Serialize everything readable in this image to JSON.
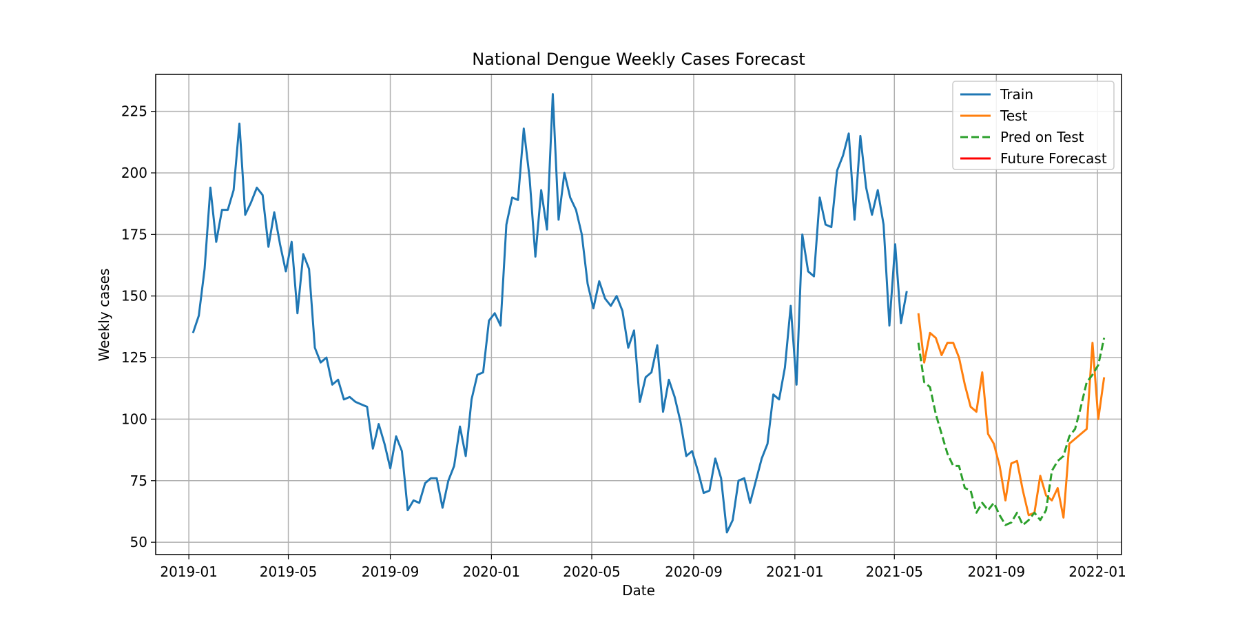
{
  "chart_data": {
    "type": "line",
    "title": "National Dengue Weekly Cases Forecast",
    "xlabel": "Date",
    "ylabel": "Weekly cases",
    "x_range": [
      "2018-11-22",
      "2022-01-30"
    ],
    "ylim": [
      45,
      240
    ],
    "grid": true,
    "legend_position": "top-right",
    "x_ticks": [
      {
        "date": "2019-01-01",
        "label": "2019-01"
      },
      {
        "date": "2019-05-01",
        "label": "2019-05"
      },
      {
        "date": "2019-09-01",
        "label": "2019-09"
      },
      {
        "date": "2020-01-01",
        "label": "2020-01"
      },
      {
        "date": "2020-05-01",
        "label": "2020-05"
      },
      {
        "date": "2020-09-01",
        "label": "2020-09"
      },
      {
        "date": "2021-01-01",
        "label": "2021-01"
      },
      {
        "date": "2021-05-01",
        "label": "2021-05"
      },
      {
        "date": "2021-09-01",
        "label": "2021-09"
      },
      {
        "date": "2022-01-01",
        "label": "2022-01"
      }
    ],
    "y_ticks": [
      50,
      75,
      100,
      125,
      150,
      175,
      200,
      225
    ],
    "series": [
      {
        "name": "Train",
        "color": "#1f77b4",
        "style": "solid",
        "start_date": "2019-01-06",
        "interval_days": 7,
        "values": [
          135,
          142,
          161,
          194,
          172,
          185,
          185,
          193,
          220,
          183,
          188,
          194,
          191,
          170,
          184,
          171,
          160,
          172,
          143,
          167,
          161,
          129,
          123,
          125,
          114,
          116,
          108,
          109,
          107,
          106,
          105,
          88,
          98,
          90,
          80,
          93,
          87,
          63,
          67,
          66,
          74,
          76,
          76,
          64,
          75,
          81,
          97,
          85,
          108,
          118,
          119,
          140,
          143,
          138,
          179,
          190,
          189,
          218,
          198,
          166,
          193,
          177,
          232,
          181,
          200,
          190,
          185,
          175,
          155,
          145,
          156,
          149,
          146,
          150,
          144,
          129,
          136,
          107,
          117,
          119,
          130,
          103,
          116,
          109,
          99,
          85,
          87,
          79,
          70,
          71,
          84,
          76,
          54,
          59,
          75,
          76,
          66,
          75,
          84,
          90,
          110,
          108,
          121,
          146,
          114,
          175,
          160,
          158,
          190,
          179,
          178,
          201,
          207,
          216,
          181,
          215,
          194,
          183,
          193,
          179,
          138,
          171,
          139,
          152
        ]
      },
      {
        "name": "Test",
        "color": "#ff7f0e",
        "style": "solid",
        "start_date": "2021-05-30",
        "interval_days": 7,
        "values": [
          143,
          123,
          135,
          133,
          126,
          131,
          131,
          125,
          114,
          105,
          103,
          119,
          94,
          90,
          81,
          67,
          82,
          83,
          71,
          61,
          62,
          77,
          69,
          67,
          72,
          60,
          90,
          92,
          94,
          96,
          131,
          100,
          117
        ]
      },
      {
        "name": "Pred on Test",
        "color": "#2ca02c",
        "style": "dashed",
        "start_date": "2021-05-30",
        "interval_days": 7,
        "values": [
          131,
          115,
          113,
          102,
          94,
          86,
          81,
          81,
          72,
          71,
          62,
          66,
          63,
          66,
          61,
          57,
          58,
          62,
          57,
          59,
          62,
          59,
          63,
          79,
          83,
          85,
          93,
          96,
          105,
          115,
          118,
          122,
          133
        ]
      },
      {
        "name": "Future Forecast",
        "color": "#ff0000",
        "style": "solid",
        "values": []
      }
    ]
  }
}
